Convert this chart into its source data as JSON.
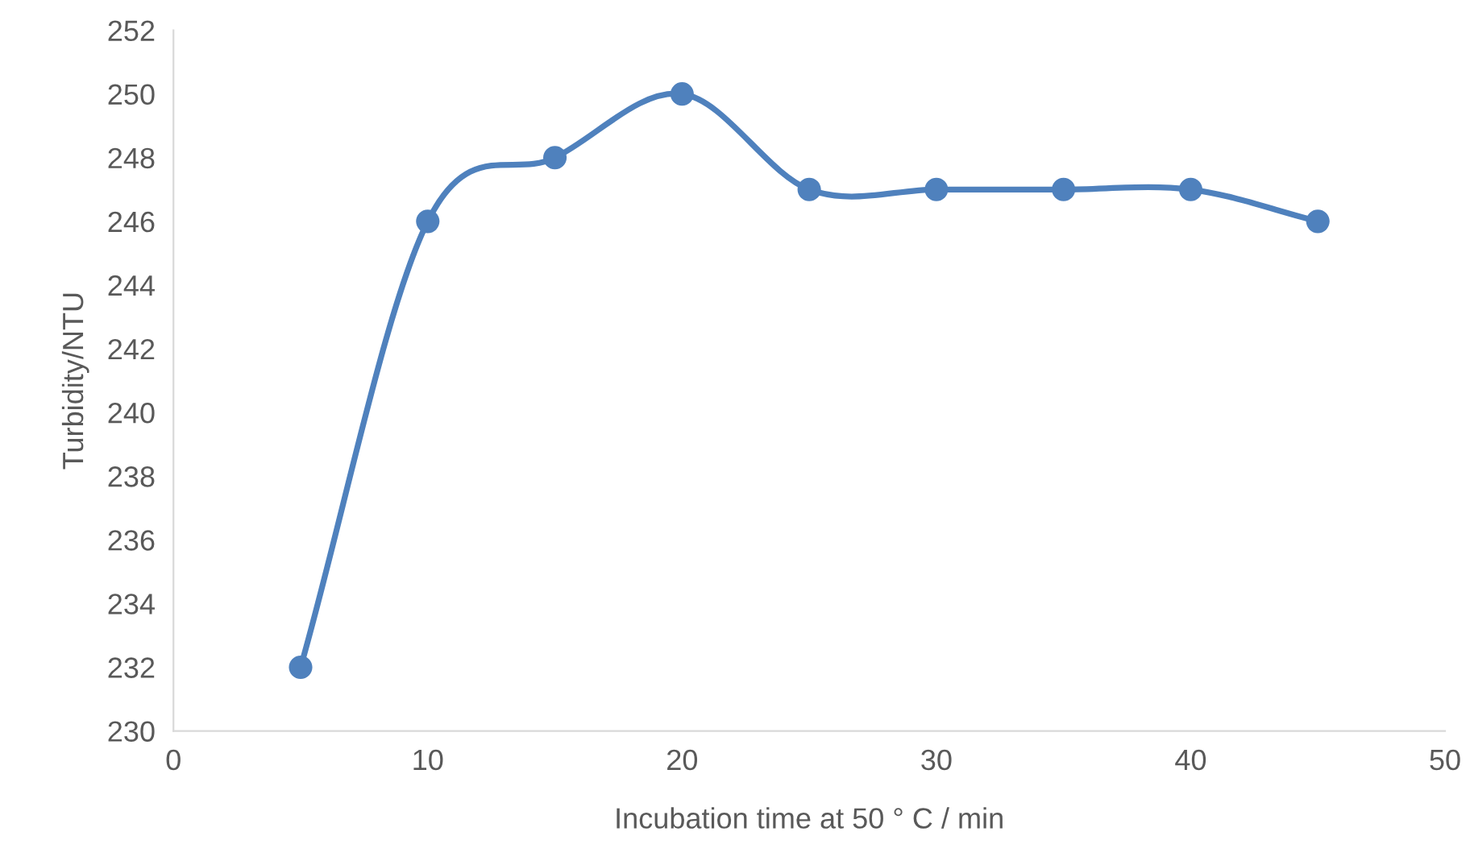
{
  "chart_data": {
    "type": "line",
    "xlabel": "Incubation time at 50 ° C / min",
    "ylabel": "Turbidity/NTU",
    "x": [
      5,
      10,
      15,
      20,
      25,
      30,
      35,
      40,
      45
    ],
    "series": [
      {
        "color": "#4f81bd",
        "values": [
          232,
          246,
          248,
          250,
          247,
          247,
          247,
          247,
          246
        ]
      }
    ],
    "xlim": [
      0,
      50
    ],
    "xticks": [
      0,
      10,
      20,
      30,
      40,
      50
    ],
    "ylim": [
      230,
      252
    ],
    "yticks": [
      230,
      232,
      234,
      236,
      238,
      240,
      242,
      244,
      246,
      248,
      250,
      252
    ],
    "marker": "circle",
    "line_style": "solid",
    "grid": false,
    "legend": false
  }
}
